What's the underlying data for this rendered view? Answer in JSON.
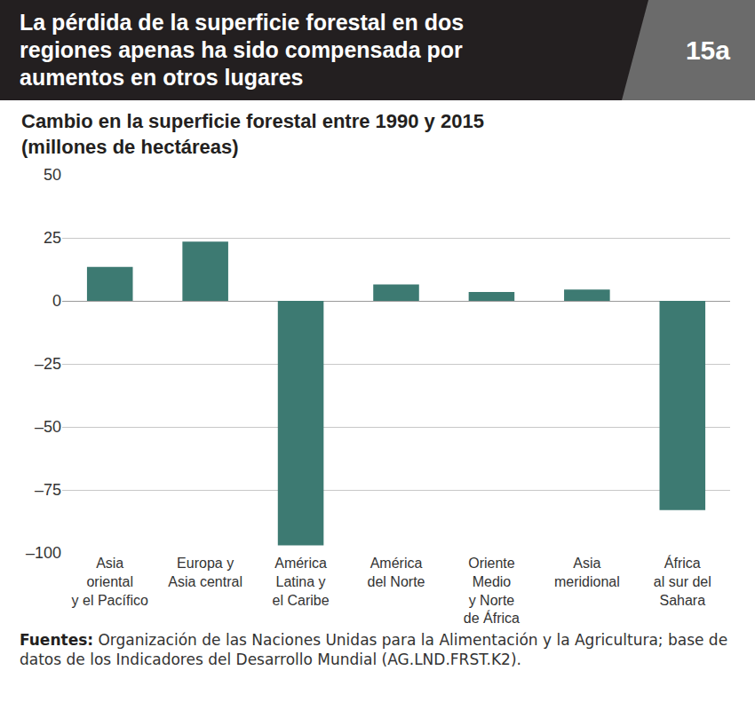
{
  "chart_data": {
    "type": "bar",
    "title": "La pérdida de la superficie forestal en dos\nregiones apenas ha sido compensada por\naumentos en otros lugares",
    "subtitle": "Cambio en la superficie forestal entre 1990 y 2015\n(millones de hectáreas)",
    "annotations": [
      {
        "text": "15a"
      }
    ],
    "source": {
      "label": "Fuentes:",
      "text": "Organización de las Naciones Unidas para la Alimentación y la Agricultura; base de datos de los Indicadores del Desarrollo Mundial (AG.LND.FRST.K2)."
    },
    "categories": [
      "Asia\noriental\ny el Pacífico",
      "Europa y\nAsia central",
      "América\nLatina y\nel Caribe",
      "América\ndel Norte",
      "Oriente\nMedio\ny Norte\nde África",
      "Asia\nmeridional",
      "África\nal sur del\nSahara"
    ],
    "values": [
      13.5,
      23.5,
      -97,
      6.5,
      3.5,
      4.5,
      -83
    ],
    "color": "#3d7a72",
    "ylim": [
      -100,
      50
    ],
    "yticks": [
      {
        "value": -100,
        "label": "–100"
      },
      {
        "value": -75,
        "label": "–75"
      },
      {
        "value": -50,
        "label": "–50"
      },
      {
        "value": -25,
        "label": "–25"
      },
      0,
      25,
      50
    ],
    "grid": true
  }
}
